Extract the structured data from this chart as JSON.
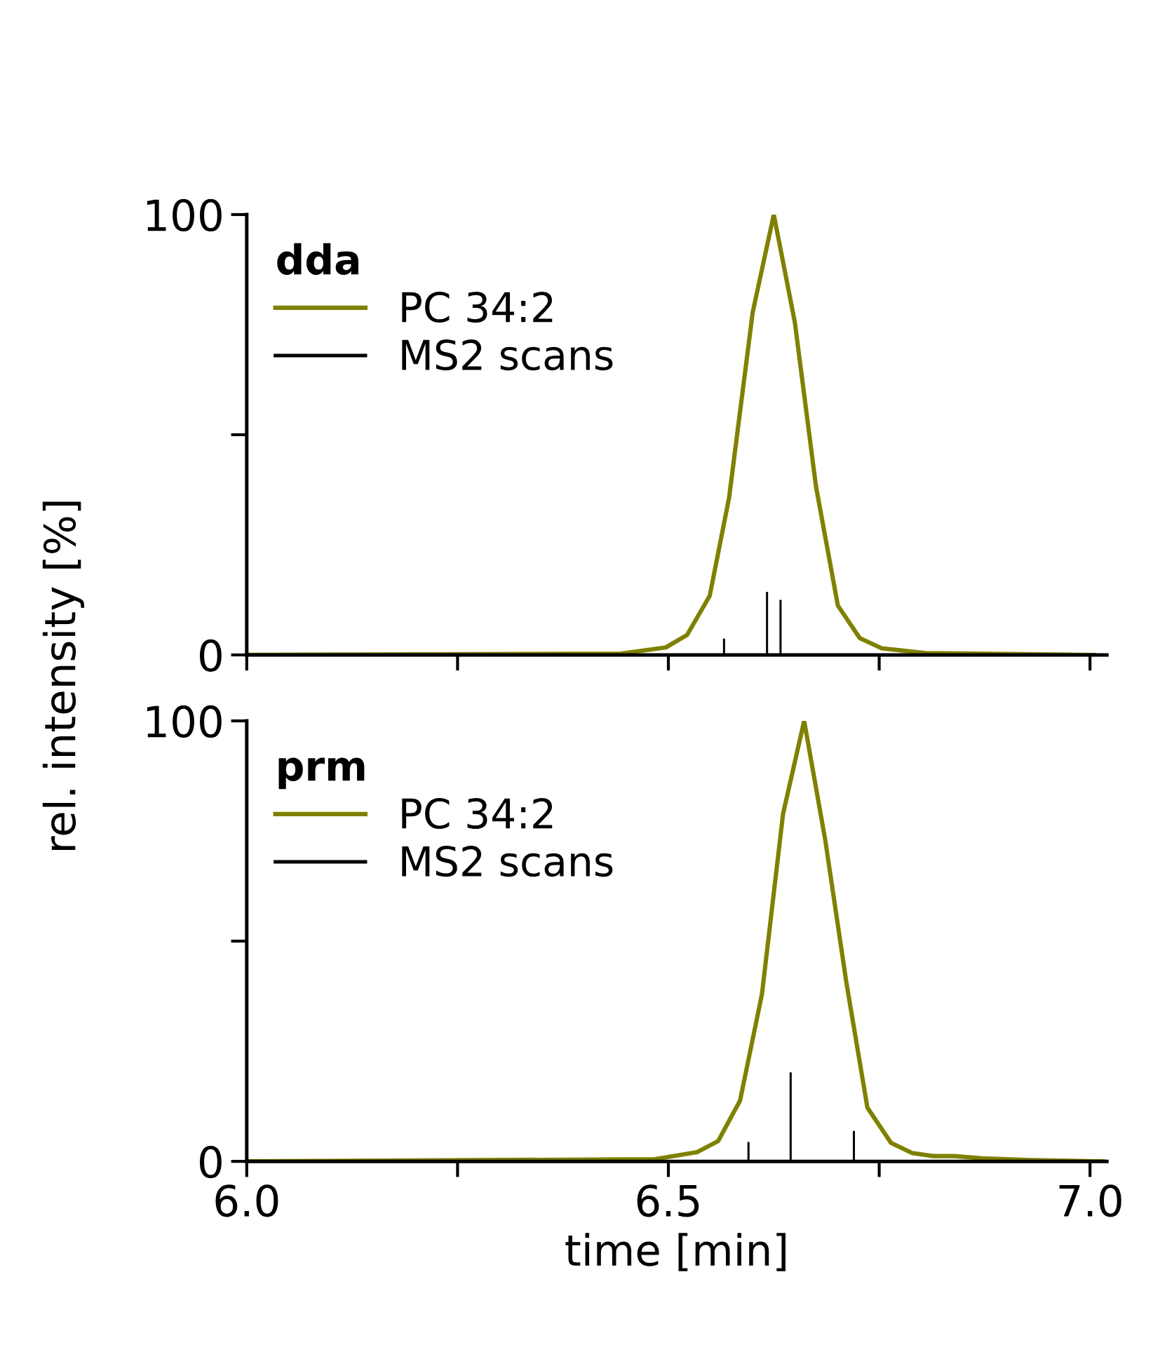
{
  "chart_data": [
    {
      "type": "line",
      "legend_title": "dda",
      "ylabel": "rel. intensity [%]",
      "xlim": [
        6.0,
        7.02
      ],
      "xticks": [
        {
          "value": 6.0,
          "label": null
        },
        {
          "value": 6.25,
          "label": null
        },
        {
          "value": 6.5,
          "label": null
        },
        {
          "value": 6.75,
          "label": null
        },
        {
          "value": 7.0,
          "label": null
        }
      ],
      "ylim": [
        0,
        100
      ],
      "yticks": [
        0,
        {
          "value": 50,
          "label": null
        },
        100
      ],
      "tick_labels": "y",
      "legend": "top left",
      "grid": false,
      "series": [
        {
          "name": "PC 34:2",
          "color": "#808000",
          "x": [
            6.0,
            6.444,
            6.497,
            6.522,
            6.549,
            6.572,
            6.6,
            6.625,
            6.65,
            6.675,
            6.701,
            6.727,
            6.753,
            6.805,
            7.005
          ],
          "values": [
            0,
            0.3,
            1.7,
            4.5,
            13.4,
            35.7,
            77.8,
            100,
            75.5,
            38.3,
            11.2,
            3.8,
            1.5,
            0.4,
            0
          ]
        },
        {
          "name": "MS2 scans",
          "type": "bar",
          "color": "#000000",
          "x": [
            6.566,
            6.617,
            6.633
          ],
          "values": [
            3.7,
            14.3,
            12.5
          ]
        }
      ]
    },
    {
      "type": "line",
      "legend_title": "prm",
      "xlabel": "time [min]",
      "xlim": [
        6.0,
        7.02
      ],
      "xticks": [
        {
          "value": 6.0,
          "label": "6.0"
        },
        {
          "value": 6.25,
          "label": null
        },
        6.5,
        {
          "value": 6.75,
          "label": null
        },
        {
          "value": 7.0,
          "label": "7.0"
        }
      ],
      "ylim": [
        0,
        100
      ],
      "yticks": [
        0,
        {
          "value": 50,
          "label": null
        },
        100
      ],
      "legend": "top left",
      "grid": false,
      "series": [
        {
          "name": "PC 34:2",
          "color": "#808000",
          "x": [
            6.0,
            6.484,
            6.534,
            6.559,
            6.585,
            6.611,
            6.636,
            6.661,
            6.686,
            6.711,
            6.736,
            6.764,
            6.789,
            6.814,
            6.839,
            6.872,
            6.93,
            7.016
          ],
          "values": [
            0,
            0.5,
            2.1,
            4.6,
            13.8,
            38.0,
            78.9,
            100,
            73.0,
            40.7,
            12.2,
            4.2,
            1.9,
            1.2,
            1.2,
            0.7,
            0.3,
            0
          ]
        },
        {
          "name": "MS2 scans",
          "type": "bar",
          "color": "#000000",
          "x": [
            6.595,
            6.645,
            6.72
          ],
          "values": [
            4.4,
            20.2,
            6.9
          ]
        }
      ]
    }
  ]
}
